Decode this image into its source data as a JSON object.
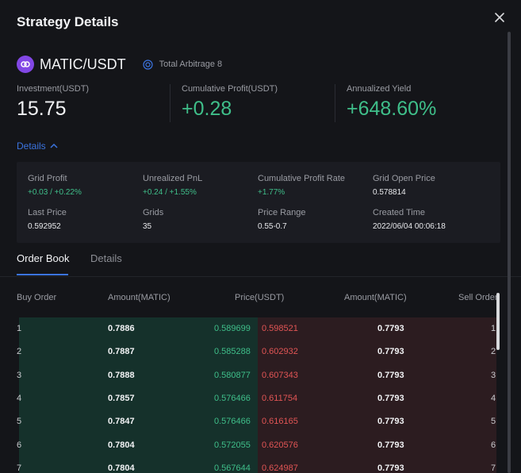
{
  "modal": {
    "title": "Strategy Details"
  },
  "pair": {
    "symbol": "MATIC/USDT",
    "arbitrage_label": "Total Arbitrage 8"
  },
  "stats": {
    "investment": {
      "label": "Investment(USDT)",
      "value": "15.75"
    },
    "cumulative_profit": {
      "label": "Cumulative Profit(USDT)",
      "value": "+0.28"
    },
    "annualized_yield": {
      "label": "Annualized Yield",
      "value": "+648.60%"
    }
  },
  "details_toggle": {
    "label": "Details"
  },
  "details": {
    "grid_profit": {
      "label": "Grid Profit",
      "value": "+0.03 / +0.22%"
    },
    "unrealized_pnl": {
      "label": "Unrealized PnL",
      "value": "+0.24 / +1.55%"
    },
    "cumulative_profit_rate": {
      "label": "Cumulative Profit Rate",
      "value": "+1.77%"
    },
    "grid_open_price": {
      "label": "Grid Open Price",
      "value": "0.578814"
    },
    "last_price": {
      "label": "Last Price",
      "value": "0.592952"
    },
    "grids": {
      "label": "Grids",
      "value": "35"
    },
    "price_range": {
      "label": "Price Range",
      "value": "0.55-0.7"
    },
    "created_time": {
      "label": "Created Time",
      "value": "2022/06/04 00:06:18"
    }
  },
  "tabs": [
    {
      "label": "Order Book",
      "active": true
    },
    {
      "label": "Details",
      "active": false
    }
  ],
  "order_book": {
    "columns": [
      "Buy Order",
      "Amount(MATIC)",
      "Price(USDT)",
      "Amount(MATIC)",
      "Sell Order"
    ],
    "rows": [
      {
        "buy_idx": "1",
        "buy_amount": "0.7886",
        "buy_price": "0.589699",
        "sell_price": "0.598521",
        "sell_amount": "0.7793",
        "sell_idx": "1"
      },
      {
        "buy_idx": "2",
        "buy_amount": "0.7887",
        "buy_price": "0.585288",
        "sell_price": "0.602932",
        "sell_amount": "0.7793",
        "sell_idx": "2"
      },
      {
        "buy_idx": "3",
        "buy_amount": "0.7888",
        "buy_price": "0.580877",
        "sell_price": "0.607343",
        "sell_amount": "0.7793",
        "sell_idx": "3"
      },
      {
        "buy_idx": "4",
        "buy_amount": "0.7857",
        "buy_price": "0.576466",
        "sell_price": "0.611754",
        "sell_amount": "0.7793",
        "sell_idx": "4"
      },
      {
        "buy_idx": "5",
        "buy_amount": "0.7847",
        "buy_price": "0.576466",
        "sell_price": "0.616165",
        "sell_amount": "0.7793",
        "sell_idx": "5"
      },
      {
        "buy_idx": "6",
        "buy_amount": "0.7804",
        "buy_price": "0.572055",
        "sell_price": "0.620576",
        "sell_amount": "0.7793",
        "sell_idx": "6"
      },
      {
        "buy_idx": "7",
        "buy_amount": "0.7804",
        "buy_price": "0.567644",
        "sell_price": "0.624987",
        "sell_amount": "0.7793",
        "sell_idx": "7"
      }
    ]
  },
  "colors": {
    "background": "#141519",
    "accent": "#3b74e0",
    "positive": "#3fbf8a",
    "negative": "#e25555",
    "matic": "#8247e5"
  },
  "icons": {
    "close": "close-icon",
    "coin": "matic-coin-icon",
    "arbitrage": "arbitrage-ring-icon",
    "toggle": "chevron-up-icon"
  }
}
